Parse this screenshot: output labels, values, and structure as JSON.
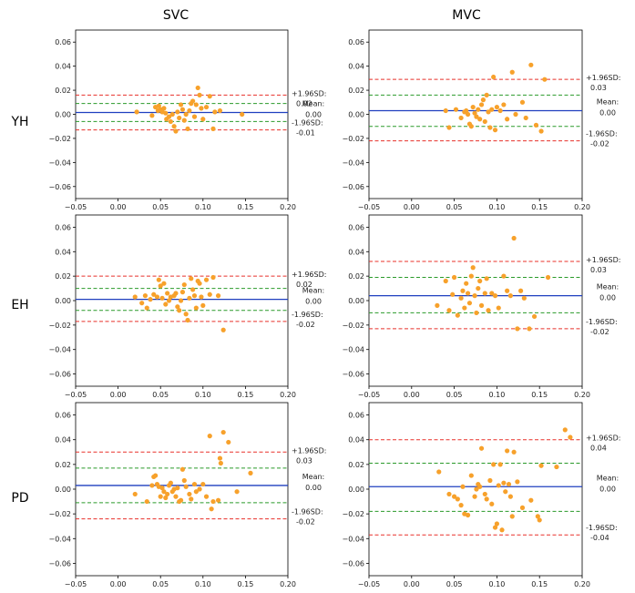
{
  "figure": {
    "column_titles": [
      "SVC",
      "MVC"
    ],
    "row_labels": [
      "YH",
      "EH",
      "PD"
    ]
  },
  "colors": {
    "mean": "#1f3fbf",
    "limits": "#e8302a",
    "ci": "#2a9a2a",
    "points": "#f7a12b"
  },
  "chart_data": [
    {
      "type": "scatter",
      "row": "YH",
      "column": "SVC",
      "xlim": [
        -0.05,
        0.2
      ],
      "ylim": [
        -0.07,
        0.07
      ],
      "xticks": [
        "−0.05",
        "0.00",
        "0.05",
        "0.10",
        "0.15",
        "0.20"
      ],
      "yticks": [
        "−0.06",
        "−0.04",
        "−0.02",
        "0.00",
        "0.02",
        "0.04",
        "0.06"
      ],
      "mean": 0.0015,
      "upper_loa": 0.016,
      "lower_loa": -0.013,
      "upper_ci": 0.009,
      "lower_ci": -0.006,
      "annotations": {
        "upper": [
          "+1.96SD:",
          "0.02"
        ],
        "mean": [
          "Mean:",
          "0.00"
        ],
        "lower": [
          "-1.96SD:",
          "-0.01"
        ]
      },
      "points": [
        [
          0.022,
          0.002
        ],
        [
          0.04,
          -0.001
        ],
        [
          0.044,
          0.006
        ],
        [
          0.047,
          0.003
        ],
        [
          0.048,
          0.007
        ],
        [
          0.05,
          0.004
        ],
        [
          0.052,
          0.002
        ],
        [
          0.054,
          0.005
        ],
        [
          0.056,
          0.001
        ],
        [
          0.057,
          -0.004
        ],
        [
          0.06,
          -0.002
        ],
        [
          0.062,
          -0.006
        ],
        [
          0.064,
          0.0
        ],
        [
          0.066,
          -0.01
        ],
        [
          0.068,
          -0.014
        ],
        [
          0.07,
          0.002
        ],
        [
          0.072,
          -0.003
        ],
        [
          0.074,
          0.008
        ],
        [
          0.076,
          0.004
        ],
        [
          0.078,
          -0.005
        ],
        [
          0.08,
          0.0
        ],
        [
          0.082,
          -0.012
        ],
        [
          0.084,
          0.003
        ],
        [
          0.086,
          0.009
        ],
        [
          0.088,
          0.011
        ],
        [
          0.09,
          -0.002
        ],
        [
          0.092,
          0.008
        ],
        [
          0.094,
          0.022
        ],
        [
          0.096,
          0.016
        ],
        [
          0.098,
          0.005
        ],
        [
          0.1,
          -0.004
        ],
        [
          0.104,
          0.006
        ],
        [
          0.108,
          0.015
        ],
        [
          0.112,
          -0.012
        ],
        [
          0.114,
          0.002
        ],
        [
          0.12,
          0.003
        ],
        [
          0.146,
          0.0
        ]
      ]
    },
    {
      "type": "scatter",
      "row": "YH",
      "column": "MVC",
      "xlim": [
        -0.05,
        0.2
      ],
      "ylim": [
        -0.07,
        0.07
      ],
      "xticks": [
        "−0.05",
        "0.00",
        "0.05",
        "0.10",
        "0.15",
        "0.20"
      ],
      "yticks": [
        "−0.06",
        "−0.04",
        "−0.02",
        "0.00",
        "0.02",
        "0.04",
        "0.06"
      ],
      "mean": 0.003,
      "upper_loa": 0.029,
      "lower_loa": -0.022,
      "upper_ci": 0.016,
      "lower_ci": -0.01,
      "annotations": {
        "upper": [
          "+1.96SD:",
          "0.03"
        ],
        "mean": [
          "Mean:",
          "0.00"
        ],
        "lower": [
          "-1.96SD:",
          "-0.02"
        ]
      },
      "points": [
        [
          0.04,
          0.003
        ],
        [
          0.044,
          -0.011
        ],
        [
          0.052,
          0.004
        ],
        [
          0.058,
          -0.003
        ],
        [
          0.062,
          0.002
        ],
        [
          0.064,
          0.003
        ],
        [
          0.066,
          0.0
        ],
        [
          0.068,
          -0.008
        ],
        [
          0.07,
          -0.01
        ],
        [
          0.072,
          0.006
        ],
        [
          0.074,
          0.001
        ],
        [
          0.076,
          -0.002
        ],
        [
          0.078,
          0.004
        ],
        [
          0.08,
          -0.004
        ],
        [
          0.082,
          0.008
        ],
        [
          0.084,
          0.012
        ],
        [
          0.086,
          -0.006
        ],
        [
          0.088,
          0.016
        ],
        [
          0.09,
          0.002
        ],
        [
          0.092,
          -0.011
        ],
        [
          0.094,
          0.004
        ],
        [
          0.096,
          0.031
        ],
        [
          0.098,
          -0.013
        ],
        [
          0.1,
          0.006
        ],
        [
          0.104,
          0.003
        ],
        [
          0.108,
          0.008
        ],
        [
          0.112,
          -0.004
        ],
        [
          0.118,
          0.035
        ],
        [
          0.122,
          0.0
        ],
        [
          0.13,
          0.01
        ],
        [
          0.134,
          -0.003
        ],
        [
          0.14,
          0.041
        ],
        [
          0.146,
          -0.009
        ],
        [
          0.152,
          -0.014
        ],
        [
          0.156,
          0.029
        ]
      ]
    },
    {
      "type": "scatter",
      "row": "EH",
      "column": "SVC",
      "xlim": [
        -0.05,
        0.2
      ],
      "ylim": [
        -0.07,
        0.07
      ],
      "xticks": [
        "−0.05",
        "0.00",
        "0.05",
        "0.10",
        "0.15",
        "0.20"
      ],
      "yticks": [
        "−0.06",
        "−0.04",
        "−0.02",
        "0.00",
        "0.02",
        "0.04",
        "0.06"
      ],
      "mean": 0.001,
      "upper_loa": 0.02,
      "lower_loa": -0.017,
      "upper_ci": 0.01,
      "lower_ci": -0.008,
      "annotations": {
        "upper": [
          "+1.96SD:",
          "0.02"
        ],
        "mean": [
          "Mean:",
          "0.00"
        ],
        "lower": [
          "-1.96SD:",
          "-0.02"
        ]
      },
      "points": [
        [
          0.02,
          0.003
        ],
        [
          0.028,
          -0.002
        ],
        [
          0.032,
          0.004
        ],
        [
          0.034,
          -0.006
        ],
        [
          0.038,
          0.001
        ],
        [
          0.042,
          0.005
        ],
        [
          0.046,
          0.003
        ],
        [
          0.048,
          0.017
        ],
        [
          0.05,
          0.012
        ],
        [
          0.052,
          0.002
        ],
        [
          0.054,
          0.014
        ],
        [
          0.056,
          -0.003
        ],
        [
          0.058,
          0.006
        ],
        [
          0.06,
          0.0
        ],
        [
          0.062,
          0.003
        ],
        [
          0.066,
          0.004
        ],
        [
          0.068,
          0.006
        ],
        [
          0.07,
          -0.005
        ],
        [
          0.072,
          -0.008
        ],
        [
          0.074,
          0.0
        ],
        [
          0.076,
          0.007
        ],
        [
          0.078,
          0.013
        ],
        [
          0.08,
          -0.011
        ],
        [
          0.082,
          -0.016
        ],
        [
          0.084,
          0.002
        ],
        [
          0.086,
          0.018
        ],
        [
          0.088,
          0.009
        ],
        [
          0.09,
          0.004
        ],
        [
          0.092,
          -0.006
        ],
        [
          0.094,
          0.016
        ],
        [
          0.096,
          0.014
        ],
        [
          0.098,
          0.003
        ],
        [
          0.1,
          -0.004
        ],
        [
          0.104,
          0.017
        ],
        [
          0.108,
          0.005
        ],
        [
          0.112,
          0.019
        ],
        [
          0.118,
          0.004
        ],
        [
          0.124,
          -0.024
        ]
      ]
    },
    {
      "type": "scatter",
      "row": "EH",
      "column": "MVC",
      "xlim": [
        -0.05,
        0.2
      ],
      "ylim": [
        -0.07,
        0.07
      ],
      "xticks": [
        "−0.05",
        "0.00",
        "0.05",
        "0.10",
        "0.15",
        "0.20"
      ],
      "yticks": [
        "−0.06",
        "−0.04",
        "−0.02",
        "0.00",
        "0.02",
        "0.04",
        "0.06"
      ],
      "mean": 0.004,
      "upper_loa": 0.032,
      "lower_loa": -0.023,
      "upper_ci": 0.019,
      "lower_ci": -0.01,
      "annotations": {
        "upper": [
          "+1.96SD:",
          "0.03"
        ],
        "mean": [
          "Mean:",
          "0.00"
        ],
        "lower": [
          "-1.96SD:",
          "-0.02"
        ]
      },
      "points": [
        [
          0.03,
          -0.004
        ],
        [
          0.04,
          0.016
        ],
        [
          0.044,
          -0.008
        ],
        [
          0.048,
          0.005
        ],
        [
          0.05,
          0.019
        ],
        [
          0.054,
          -0.012
        ],
        [
          0.058,
          0.002
        ],
        [
          0.06,
          0.008
        ],
        [
          0.062,
          -0.006
        ],
        [
          0.064,
          0.014
        ],
        [
          0.066,
          0.006
        ],
        [
          0.068,
          -0.002
        ],
        [
          0.07,
          0.02
        ],
        [
          0.072,
          0.027
        ],
        [
          0.074,
          0.004
        ],
        [
          0.076,
          -0.01
        ],
        [
          0.078,
          0.01
        ],
        [
          0.08,
          0.016
        ],
        [
          0.082,
          -0.004
        ],
        [
          0.086,
          0.006
        ],
        [
          0.088,
          0.018
        ],
        [
          0.09,
          -0.008
        ],
        [
          0.094,
          0.006
        ],
        [
          0.098,
          0.004
        ],
        [
          0.102,
          -0.006
        ],
        [
          0.108,
          0.02
        ],
        [
          0.112,
          0.008
        ],
        [
          0.116,
          0.004
        ],
        [
          0.12,
          0.051
        ],
        [
          0.124,
          -0.023
        ],
        [
          0.128,
          0.008
        ],
        [
          0.132,
          0.002
        ],
        [
          0.138,
          -0.023
        ],
        [
          0.144,
          -0.013
        ],
        [
          0.16,
          0.019
        ]
      ]
    },
    {
      "type": "scatter",
      "row": "PD",
      "column": "SVC",
      "xlim": [
        -0.05,
        0.2
      ],
      "ylim": [
        -0.07,
        0.07
      ],
      "xticks": [
        "−0.05",
        "0.00",
        "0.05",
        "0.10",
        "0.15",
        "0.20"
      ],
      "yticks": [
        "−0.06",
        "−0.04",
        "−0.02",
        "0.00",
        "0.02",
        "0.04",
        "0.06"
      ],
      "mean": 0.003,
      "upper_loa": 0.03,
      "lower_loa": -0.024,
      "upper_ci": 0.017,
      "lower_ci": -0.011,
      "annotations": {
        "upper": [
          "+1.96SD:",
          "0.03"
        ],
        "mean": [
          "Mean:",
          "0.00"
        ],
        "lower": [
          "-1.96SD:",
          "-0.02"
        ]
      },
      "points": [
        [
          0.02,
          -0.004
        ],
        [
          0.034,
          -0.01
        ],
        [
          0.04,
          0.003
        ],
        [
          0.042,
          0.01
        ],
        [
          0.044,
          0.011
        ],
        [
          0.046,
          0.004
        ],
        [
          0.048,
          0.002
        ],
        [
          0.05,
          -0.006
        ],
        [
          0.052,
          0.001
        ],
        [
          0.054,
          -0.002
        ],
        [
          0.056,
          -0.007
        ],
        [
          0.058,
          -0.004
        ],
        [
          0.06,
          0.003
        ],
        [
          0.062,
          0.005
        ],
        [
          0.064,
          -0.002
        ],
        [
          0.066,
          0.0
        ],
        [
          0.068,
          -0.006
        ],
        [
          0.07,
          0.001
        ],
        [
          0.072,
          -0.01
        ],
        [
          0.074,
          -0.009
        ],
        [
          0.076,
          0.016
        ],
        [
          0.078,
          0.007
        ],
        [
          0.08,
          0.002
        ],
        [
          0.084,
          -0.004
        ],
        [
          0.086,
          -0.008
        ],
        [
          0.09,
          0.004
        ],
        [
          0.092,
          -0.002
        ],
        [
          0.096,
          0.0
        ],
        [
          0.1,
          0.004
        ],
        [
          0.104,
          -0.006
        ],
        [
          0.108,
          0.043
        ],
        [
          0.11,
          -0.016
        ],
        [
          0.112,
          -0.01
        ],
        [
          0.118,
          -0.009
        ],
        [
          0.12,
          0.025
        ],
        [
          0.121,
          0.021
        ],
        [
          0.124,
          0.046
        ],
        [
          0.13,
          0.038
        ],
        [
          0.14,
          -0.002
        ],
        [
          0.156,
          0.013
        ]
      ]
    },
    {
      "type": "scatter",
      "row": "PD",
      "column": "MVC",
      "xlim": [
        -0.05,
        0.2
      ],
      "ylim": [
        -0.07,
        0.07
      ],
      "xticks": [
        "−0.05",
        "0.00",
        "0.05",
        "0.10",
        "0.15",
        "0.20"
      ],
      "yticks": [
        "−0.06",
        "−0.04",
        "−0.02",
        "0.00",
        "0.02",
        "0.04",
        "0.06"
      ],
      "mean": 0.002,
      "upper_loa": 0.04,
      "lower_loa": -0.037,
      "upper_ci": 0.021,
      "lower_ci": -0.018,
      "annotations": {
        "upper": [
          "+1.96SD:",
          "0.04"
        ],
        "mean": [
          "Mean:",
          "0.00"
        ],
        "lower": [
          "-1.96SD:",
          "-0.04"
        ]
      },
      "points": [
        [
          0.032,
          0.014
        ],
        [
          0.044,
          -0.004
        ],
        [
          0.05,
          -0.006
        ],
        [
          0.054,
          -0.008
        ],
        [
          0.058,
          -0.013
        ],
        [
          0.06,
          0.002
        ],
        [
          0.062,
          -0.02
        ],
        [
          0.066,
          -0.021
        ],
        [
          0.07,
          0.011
        ],
        [
          0.074,
          -0.006
        ],
        [
          0.076,
          0.0
        ],
        [
          0.078,
          0.004
        ],
        [
          0.08,
          0.002
        ],
        [
          0.082,
          0.033
        ],
        [
          0.086,
          -0.004
        ],
        [
          0.088,
          -0.008
        ],
        [
          0.092,
          0.007
        ],
        [
          0.094,
          -0.012
        ],
        [
          0.096,
          0.02
        ],
        [
          0.098,
          -0.031
        ],
        [
          0.1,
          -0.028
        ],
        [
          0.102,
          0.003
        ],
        [
          0.104,
          0.02
        ],
        [
          0.106,
          -0.033
        ],
        [
          0.108,
          0.005
        ],
        [
          0.11,
          -0.002
        ],
        [
          0.112,
          0.031
        ],
        [
          0.114,
          0.004
        ],
        [
          0.116,
          -0.006
        ],
        [
          0.118,
          -0.022
        ],
        [
          0.12,
          0.03
        ],
        [
          0.124,
          0.006
        ],
        [
          0.13,
          -0.015
        ],
        [
          0.14,
          -0.009
        ],
        [
          0.148,
          -0.022
        ],
        [
          0.15,
          -0.025
        ],
        [
          0.152,
          0.019
        ],
        [
          0.17,
          0.018
        ],
        [
          0.18,
          0.048
        ],
        [
          0.186,
          0.042
        ]
      ]
    }
  ]
}
